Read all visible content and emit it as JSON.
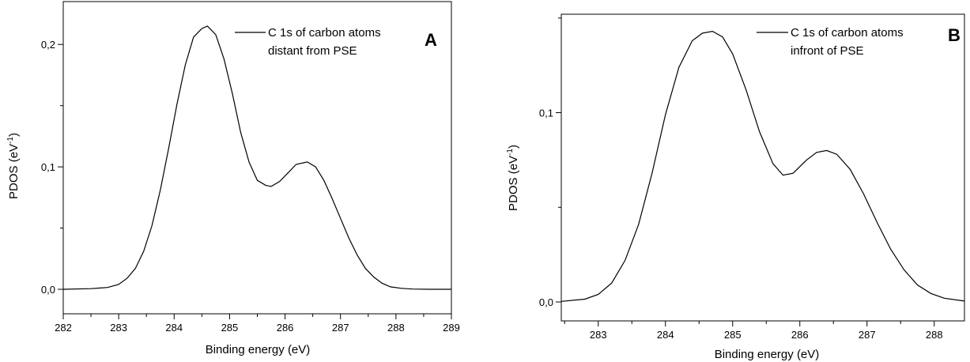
{
  "chart_data": [
    {
      "type": "line",
      "panel_label": "A",
      "xlabel": "Binding energy (eV)",
      "ylabel_main": "PDOS (eV",
      "ylabel_sup": "-1",
      "ylabel_close": ")",
      "xlim": [
        282,
        289
      ],
      "ylim": [
        -0.02,
        0.235
      ],
      "xticks": [
        282,
        283,
        284,
        285,
        286,
        287,
        288,
        289
      ],
      "yticks": [
        {
          "value": 0.0,
          "label": "0,0"
        },
        {
          "value": 0.1,
          "label": "0,1"
        },
        {
          "value": 0.2,
          "label": "0,2"
        }
      ],
      "legend": {
        "line1": "C 1s of carbon atoms",
        "line2": "distant from PSE",
        "position": "top-right"
      },
      "series": [
        {
          "name": "C 1s of carbon atoms distant from PSE",
          "x": [
            282.0,
            282.5,
            282.8,
            283.0,
            283.15,
            283.3,
            283.45,
            283.6,
            283.75,
            283.9,
            284.05,
            284.2,
            284.35,
            284.5,
            284.6,
            284.75,
            284.9,
            285.05,
            285.2,
            285.35,
            285.5,
            285.65,
            285.75,
            285.9,
            286.05,
            286.2,
            286.4,
            286.55,
            286.7,
            286.85,
            287.0,
            287.15,
            287.3,
            287.45,
            287.6,
            287.75,
            287.9,
            288.1,
            288.3,
            288.6,
            289.0
          ],
          "y": [
            0.0,
            0.0005,
            0.0015,
            0.004,
            0.009,
            0.017,
            0.031,
            0.052,
            0.081,
            0.115,
            0.151,
            0.183,
            0.206,
            0.213,
            0.215,
            0.208,
            0.188,
            0.16,
            0.128,
            0.104,
            0.089,
            0.085,
            0.084,
            0.088,
            0.095,
            0.102,
            0.104,
            0.1,
            0.089,
            0.074,
            0.058,
            0.042,
            0.028,
            0.017,
            0.01,
            0.005,
            0.002,
            0.0008,
            0.0002,
            0.0,
            0.0
          ]
        }
      ]
    },
    {
      "type": "line",
      "panel_label": "B",
      "xlabel": "Binding energy (eV)",
      "ylabel_main": "PDOS (eV",
      "ylabel_sup": "-1",
      "ylabel_close": ")",
      "xlim": [
        282.45,
        288.45
      ],
      "ylim": [
        -0.01,
        0.152
      ],
      "xticks": [
        283,
        284,
        285,
        286,
        287,
        288
      ],
      "yticks": [
        {
          "value": 0.0,
          "label": "0,0"
        },
        {
          "value": 0.1,
          "label": "0,1"
        }
      ],
      "legend": {
        "line1": "C 1s of carbon atoms",
        "line2": "infront of PSE",
        "position": "top-right"
      },
      "series": [
        {
          "name": "C 1s of carbon atoms infront of PSE",
          "x": [
            282.45,
            282.8,
            283.0,
            283.2,
            283.4,
            283.6,
            283.8,
            284.0,
            284.2,
            284.4,
            284.55,
            284.7,
            284.85,
            285.0,
            285.2,
            285.4,
            285.6,
            285.75,
            285.9,
            286.1,
            286.25,
            286.4,
            286.55,
            286.75,
            286.95,
            287.15,
            287.35,
            287.55,
            287.75,
            287.95,
            288.15,
            288.45
          ],
          "y": [
            0.0003,
            0.0015,
            0.004,
            0.01,
            0.022,
            0.041,
            0.068,
            0.099,
            0.124,
            0.138,
            0.142,
            0.143,
            0.14,
            0.131,
            0.112,
            0.09,
            0.073,
            0.067,
            0.068,
            0.075,
            0.079,
            0.08,
            0.078,
            0.07,
            0.057,
            0.042,
            0.028,
            0.017,
            0.009,
            0.0045,
            0.002,
            0.0005
          ]
        }
      ]
    }
  ]
}
